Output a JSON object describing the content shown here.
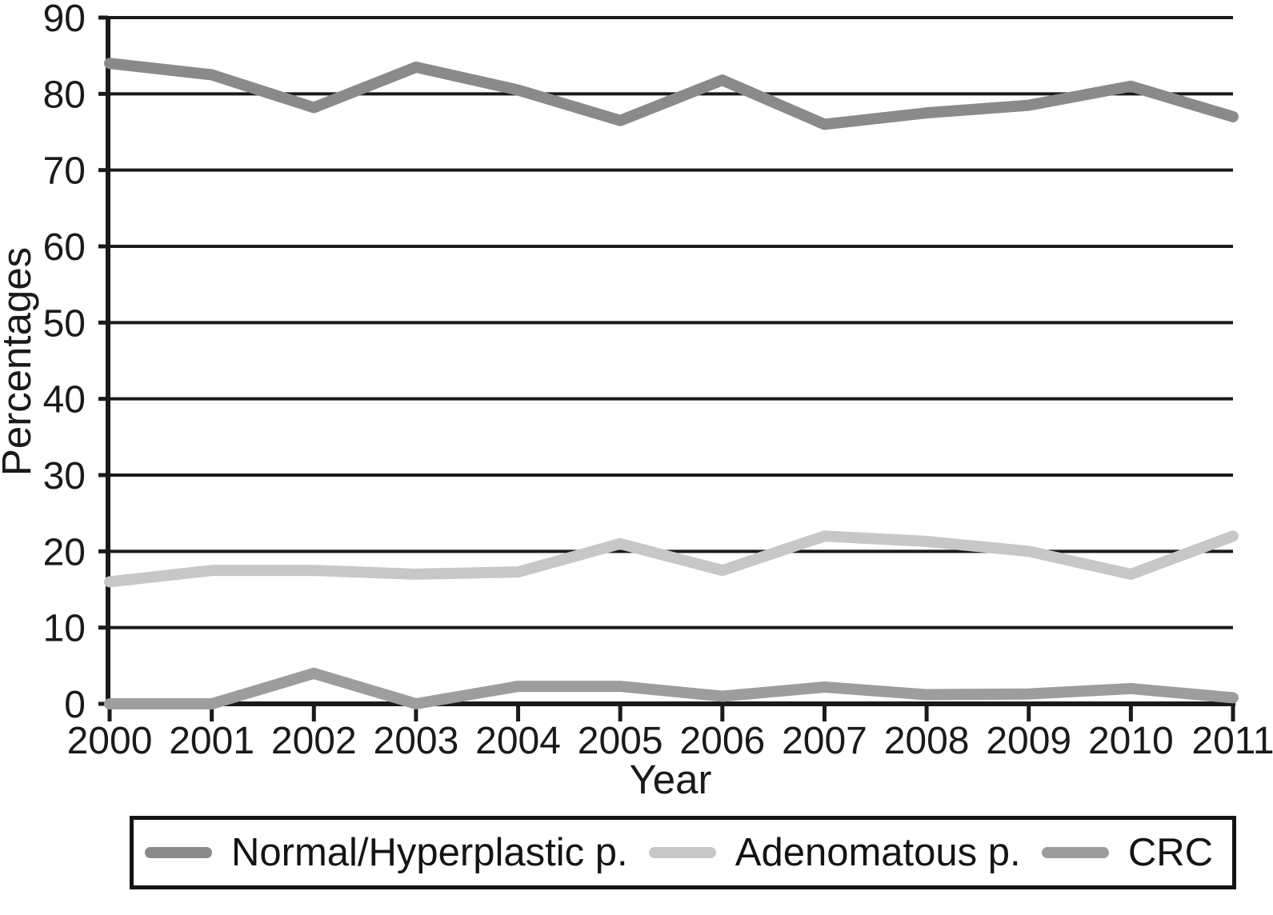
{
  "chart_data": {
    "type": "line",
    "xlabel": "Year",
    "ylabel": "Percentages",
    "x": [
      2000,
      2001,
      2002,
      2003,
      2004,
      2005,
      2006,
      2007,
      2008,
      2009,
      2010,
      2011
    ],
    "ylim": [
      0,
      90
    ],
    "ytick_step": 10,
    "grid": "horizontal",
    "legend_position": "bottom",
    "axis_color": "#1a1a1a",
    "series": [
      {
        "name": "Normal/Hyperplastic p.",
        "color": "#8a8a8a",
        "values": [
          84,
          82.5,
          78.2,
          83.5,
          80.5,
          76.5,
          81.8,
          76,
          77.5,
          78.5,
          81,
          77
        ]
      },
      {
        "name": "Adenomatous p.",
        "color": "#c7c7c7",
        "values": [
          16,
          17.5,
          17.5,
          17,
          17.3,
          21,
          17.5,
          22,
          21.3,
          20,
          17,
          22
        ]
      },
      {
        "name": "CRC",
        "color": "#9d9d9d",
        "values": [
          0,
          0,
          4,
          0,
          2.3,
          2.3,
          1,
          2.2,
          1.2,
          1.3,
          2,
          0.8
        ]
      }
    ]
  }
}
